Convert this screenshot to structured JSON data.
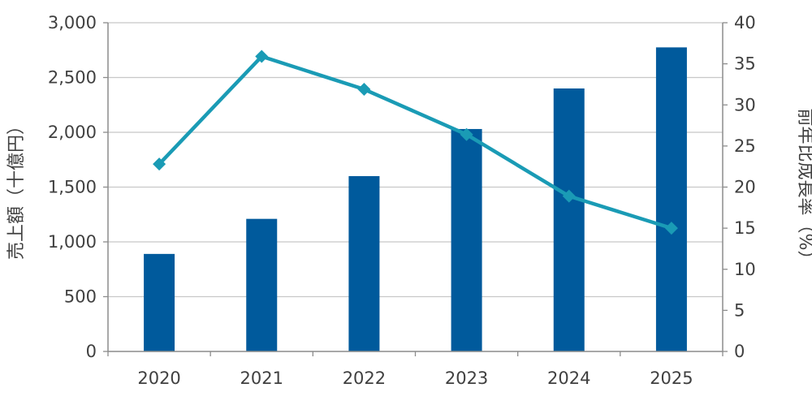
{
  "chart_data": {
    "type": "bar",
    "categories": [
      "2020",
      "2021",
      "2022",
      "2023",
      "2024",
      "2025"
    ],
    "series": [
      {
        "kind": "bar",
        "axis": "left",
        "values": [
          890,
          1210,
          1600,
          2030,
          2400,
          2775
        ]
      },
      {
        "kind": "line",
        "axis": "right",
        "values": [
          22.8,
          35.9,
          31.9,
          26.4,
          18.9,
          15.0
        ]
      }
    ],
    "ylabel": "売上額（十億円）",
    "ylabel_right": "前年比成長率（%）",
    "ylim": [
      0,
      3000
    ],
    "ylim_right": [
      0,
      40
    ],
    "yticks": [
      "0",
      "500",
      "1,000",
      "1,500",
      "2,000",
      "2,500",
      "3,000"
    ],
    "yticks_right": [
      "0",
      "5",
      "10",
      "15",
      "20",
      "25",
      "30",
      "35",
      "40"
    ],
    "grid": true,
    "colors": {
      "bar": "#005a9c",
      "line": "#1a9bb5",
      "grid": "#c8c8c8",
      "axis": "#8c8c8c",
      "text": "#404040"
    }
  }
}
